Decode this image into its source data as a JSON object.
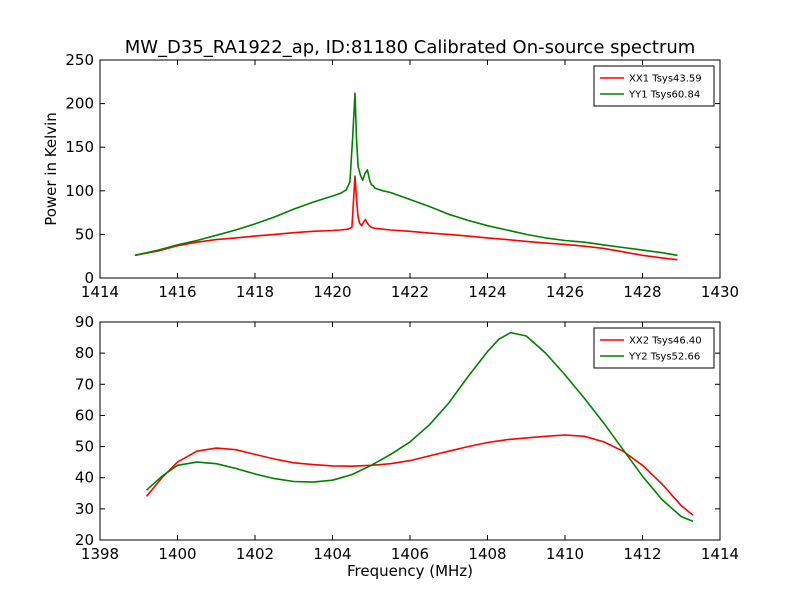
{
  "chart_data": [
    {
      "type": "line",
      "title": "MW_D35_RA1922_ap, ID:81180 Calibrated On-source spectrum",
      "xlabel": "",
      "ylabel": "Power in Kelvin",
      "xlim": [
        1414,
        1430
      ],
      "ylim": [
        0,
        250
      ],
      "xticks": [
        1414,
        1416,
        1418,
        1420,
        1422,
        1424,
        1426,
        1428,
        1430
      ],
      "yticks": [
        0,
        50,
        100,
        150,
        200,
        250
      ],
      "grid": false,
      "legend_position": "top-right",
      "series": [
        {
          "name": "XX1 Tsys43.59",
          "color": "#ff0000",
          "x": [
            1414.9,
            1415.5,
            1416,
            1416.5,
            1417,
            1417.5,
            1418,
            1418.5,
            1419,
            1419.5,
            1420,
            1420.2,
            1420.4,
            1420.5,
            1420.58,
            1420.62,
            1420.66,
            1420.7,
            1420.75,
            1420.8,
            1420.85,
            1420.9,
            1420.95,
            1421.0,
            1421.1,
            1421.3,
            1421.5,
            1422,
            1422.5,
            1423,
            1423.5,
            1424,
            1424.5,
            1425,
            1425.5,
            1426,
            1426.5,
            1427,
            1427.5,
            1428,
            1428.5,
            1428.9
          ],
          "y": [
            26,
            31,
            37,
            41,
            44,
            46,
            48,
            50,
            52,
            53.5,
            54.5,
            55,
            56,
            58,
            117,
            90,
            70,
            63,
            60,
            64,
            67,
            63,
            60,
            58,
            57,
            56,
            55,
            53.5,
            51.5,
            50,
            48,
            46,
            44,
            42,
            40,
            38.5,
            36.5,
            34,
            30,
            26,
            23,
            21
          ]
        },
        {
          "name": "YY1 Tsys60.84",
          "color": "#008000",
          "x": [
            1414.9,
            1415.5,
            1416,
            1416.5,
            1417,
            1417.5,
            1418,
            1418.5,
            1419,
            1419.5,
            1420,
            1420.2,
            1420.35,
            1420.45,
            1420.52,
            1420.58,
            1420.62,
            1420.66,
            1420.72,
            1420.78,
            1420.84,
            1420.9,
            1420.96,
            1421.0,
            1421.05,
            1421.1,
            1421.3,
            1421.5,
            1422,
            1422.5,
            1423,
            1423.5,
            1424,
            1424.5,
            1425,
            1425.5,
            1426,
            1426.5,
            1427,
            1427.5,
            1428,
            1428.5,
            1428.9
          ],
          "y": [
            26,
            32,
            38,
            43,
            49,
            55,
            62,
            70,
            79,
            87,
            94,
            97,
            101,
            110,
            160,
            212,
            160,
            128,
            118,
            112,
            120,
            124,
            112,
            107,
            106,
            103,
            100,
            98,
            90,
            82,
            73,
            66,
            60,
            55,
            50,
            46,
            43,
            41,
            38,
            35,
            32,
            29,
            26
          ]
        }
      ]
    },
    {
      "type": "line",
      "title": "",
      "xlabel": "Frequency (MHz)",
      "ylabel": "",
      "xlim": [
        1398,
        1414
      ],
      "ylim": [
        20,
        90
      ],
      "xticks": [
        1398,
        1400,
        1402,
        1404,
        1406,
        1408,
        1410,
        1412,
        1414
      ],
      "yticks": [
        20,
        30,
        40,
        50,
        60,
        70,
        80,
        90
      ],
      "grid": false,
      "legend_position": "top-right",
      "series": [
        {
          "name": "XX2 Tsys46.40",
          "color": "#ff0000",
          "x": [
            1399.2,
            1399.6,
            1400.0,
            1400.5,
            1401.0,
            1401.5,
            1402.0,
            1402.5,
            1403.0,
            1403.5,
            1404.0,
            1404.5,
            1405.0,
            1405.5,
            1406.0,
            1406.5,
            1407.0,
            1407.5,
            1408.0,
            1408.5,
            1409.0,
            1409.5,
            1410.0,
            1410.5,
            1411.0,
            1411.5,
            1412.0,
            1412.5,
            1413.0,
            1413.3
          ],
          "y": [
            34,
            40,
            45,
            48.5,
            49.5,
            49,
            47.5,
            46,
            44.8,
            44.2,
            43.8,
            43.7,
            44,
            44.5,
            45.5,
            47,
            48.5,
            50,
            51.3,
            52.2,
            52.8,
            53.3,
            53.7,
            53.3,
            51.5,
            48.5,
            44,
            38,
            31,
            28
          ]
        },
        {
          "name": "YY2 Tsys52.66",
          "color": "#008000",
          "x": [
            1399.2,
            1399.6,
            1400.0,
            1400.5,
            1401.0,
            1401.5,
            1402.0,
            1402.5,
            1403.0,
            1403.5,
            1404.0,
            1404.5,
            1405.0,
            1405.5,
            1406.0,
            1406.5,
            1407.0,
            1407.5,
            1408.0,
            1408.3,
            1408.6,
            1409.0,
            1409.5,
            1410.0,
            1410.5,
            1411.0,
            1411.5,
            1412.0,
            1412.5,
            1413.0,
            1413.3
          ],
          "y": [
            36,
            40.5,
            44,
            45,
            44.5,
            43,
            41.2,
            39.7,
            38.8,
            38.6,
            39.2,
            41,
            44,
            47.5,
            51.5,
            57,
            64,
            72.5,
            80.5,
            84.5,
            86.6,
            85.5,
            80,
            73,
            65.5,
            57.5,
            49,
            40.5,
            33,
            27.5,
            26
          ]
        }
      ]
    }
  ]
}
